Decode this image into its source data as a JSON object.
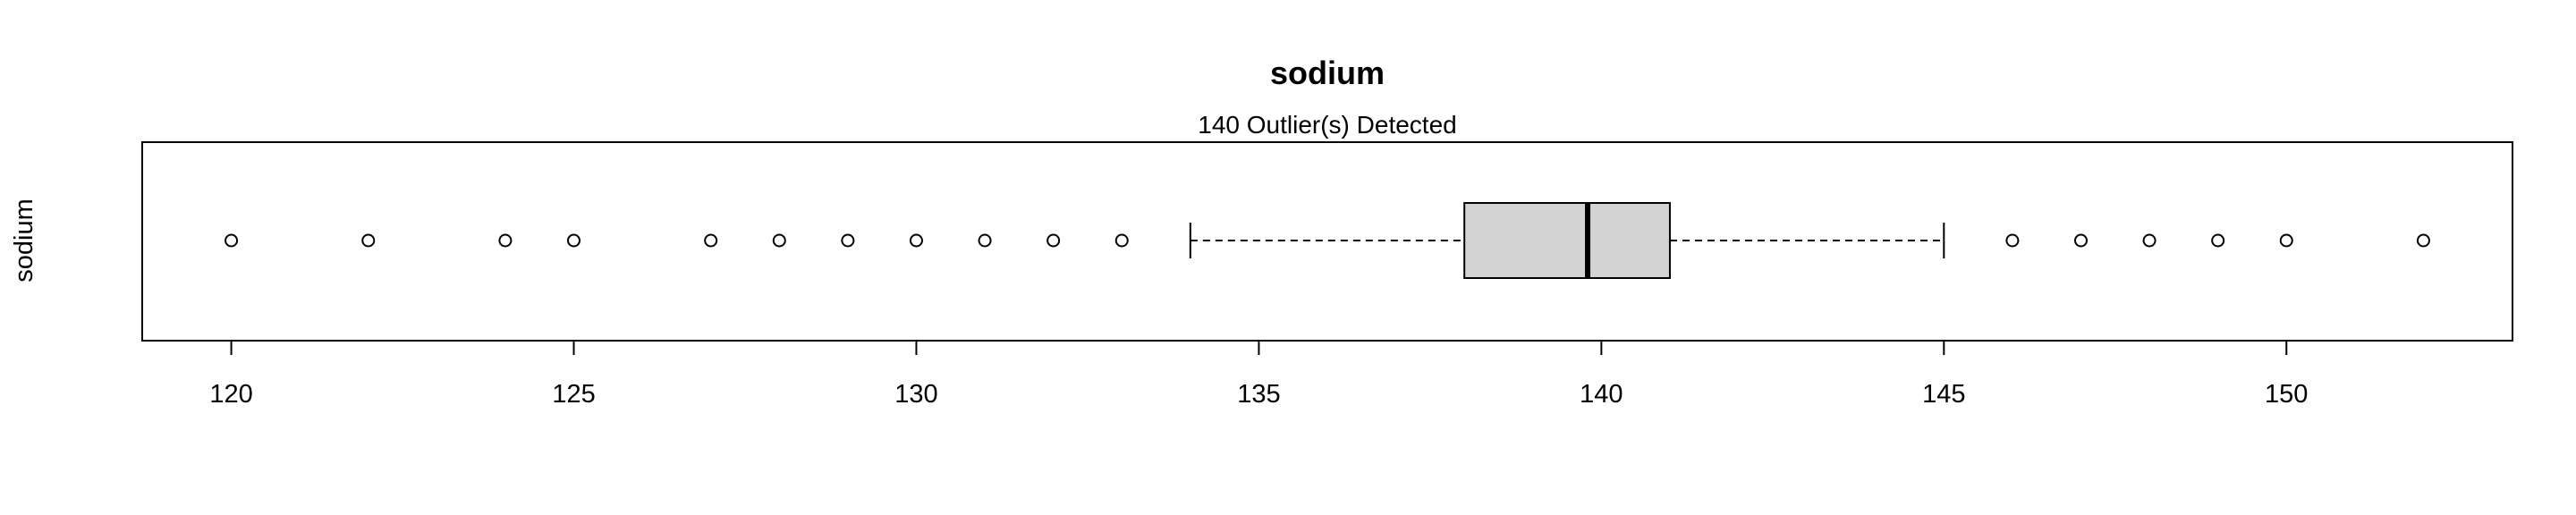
{
  "chart_data": {
    "type": "boxplot",
    "orientation": "horizontal",
    "title": "sodium",
    "subtitle": "140 Outlier(s) Detected",
    "xlabel": "",
    "ylabel": "sodium",
    "xlim": [
      118.7,
      153.3
    ],
    "x_ticks": [
      120,
      125,
      130,
      135,
      140,
      145,
      150
    ],
    "grid": false,
    "series": [
      {
        "name": "sodium",
        "whisker_low": 134,
        "q1": 138,
        "median": 139.8,
        "q3": 141,
        "whisker_high": 145,
        "outliers": [
          120,
          122,
          124,
          125,
          127,
          128,
          129,
          130,
          131,
          132,
          133,
          146,
          147,
          148,
          149,
          150,
          152
        ]
      }
    ],
    "colors": {
      "box_fill": "#d3d3d3",
      "line": "#000000"
    }
  }
}
